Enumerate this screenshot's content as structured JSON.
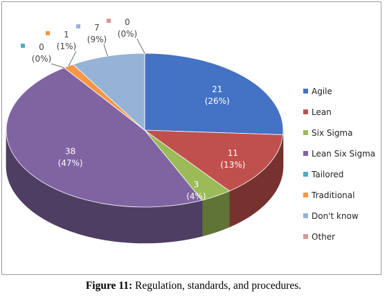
{
  "chart_data": {
    "type": "pie",
    "style": "3d",
    "legend_position": "right",
    "series": [
      {
        "name": "Agile",
        "value": 21,
        "percent": "26%",
        "color": "#4472C4"
      },
      {
        "name": "Lean",
        "value": 11,
        "percent": "13%",
        "color": "#C0504D"
      },
      {
        "name": "Six Sigma",
        "value": 3,
        "percent": "4%",
        "color": "#9BBB59"
      },
      {
        "name": "Lean Six Sigma",
        "value": 38,
        "percent": "47%",
        "color": "#8064A2"
      },
      {
        "name": "Tailored",
        "value": 0,
        "percent": "0%",
        "color": "#4BACC6"
      },
      {
        "name": "Traditional",
        "value": 1,
        "percent": "1%",
        "color": "#F79646"
      },
      {
        "name": "Don't know",
        "value": 7,
        "percent": "9%",
        "color": "#95B3D7"
      },
      {
        "name": "Other",
        "value": 0,
        "percent": "0%",
        "color": "#D99694"
      }
    ]
  },
  "caption": {
    "label": "Figure 11:",
    "text": " Regulation, standards, and procedures."
  }
}
